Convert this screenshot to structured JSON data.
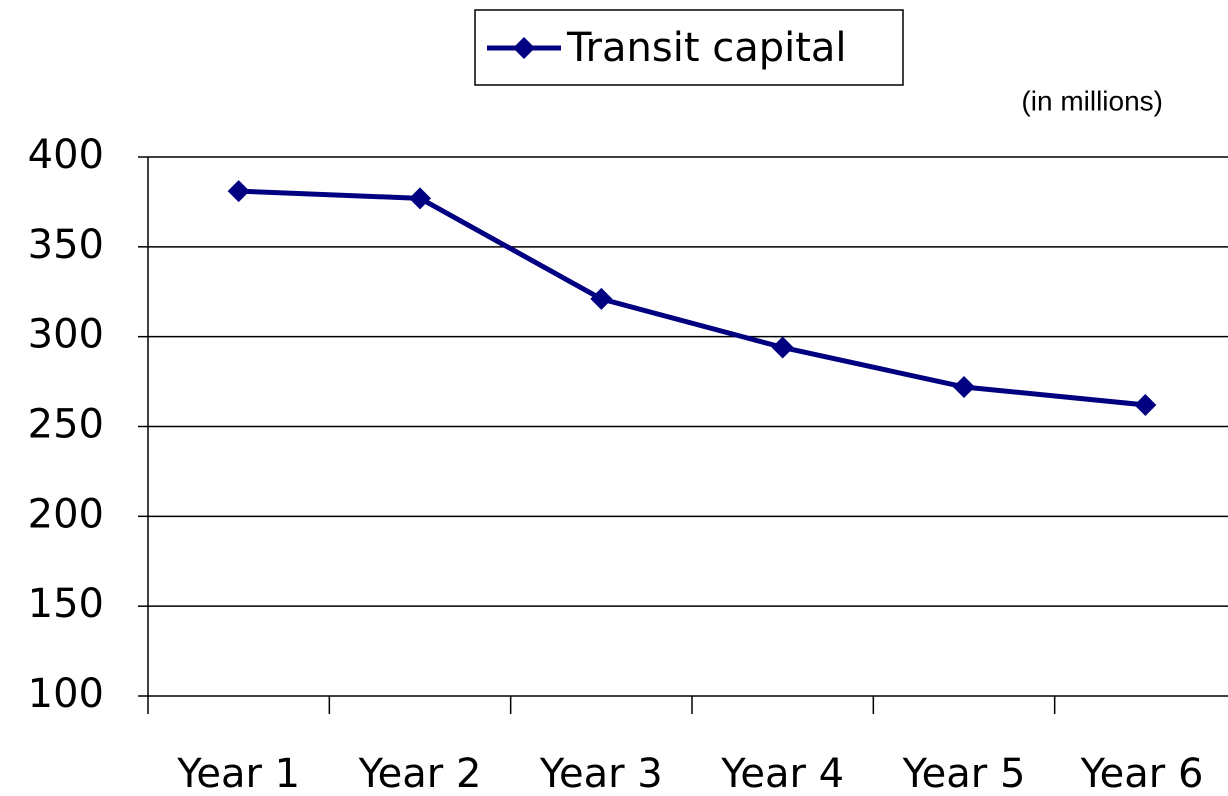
{
  "chart_data": {
    "type": "line",
    "subtitle": "(in millions)",
    "categories": [
      "Year 1",
      "Year 2",
      "Year 3",
      "Year 4",
      "Year 5",
      "Year 6"
    ],
    "series": [
      {
        "name": "Transit capital",
        "color": "#000080",
        "values": [
          381,
          377,
          321,
          294,
          272,
          262
        ]
      }
    ],
    "ylim": [
      100,
      400
    ],
    "yticks": [
      100,
      150,
      200,
      250,
      300,
      350,
      400
    ],
    "grid": true,
    "legend": "top"
  }
}
